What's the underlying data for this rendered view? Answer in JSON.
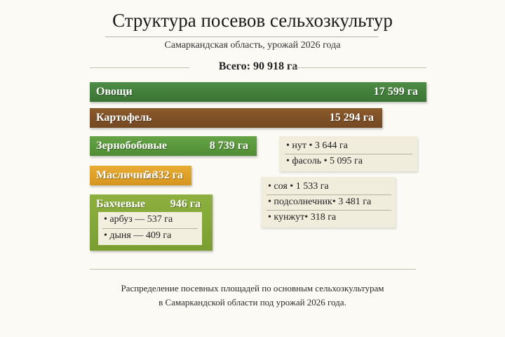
{
  "header": {
    "title": "Структура посевов сельхозкультур",
    "subtitle": "Самаркандская область, урожай 2026 года",
    "total": "Всего: 90 918 га"
  },
  "chart_data": {
    "type": "bar",
    "orientation": "horizontal",
    "unit": "га",
    "categories": [
      "Овощи",
      "Картофель",
      "Зернобобовые",
      "Масличные",
      "Бахчевые"
    ],
    "values": [
      17599,
      15294,
      8739,
      5332,
      946
    ],
    "value_labels": [
      "17 599 га",
      "15 294 га",
      "8 739 га",
      "5 332 га",
      "946 га"
    ],
    "colors": [
      "#3f7d3a",
      "#7f5128",
      "#5a9a3c",
      "#e0a22a",
      "#8db040"
    ],
    "breakdowns": {
      "Зернобобовые": [
        "• нут • 3 644 га",
        "• фасоль • 5 095 га"
      ],
      "Масличные": [
        "• соя • 1 533 га",
        "• подсолнечник• 3 481 га",
        "• кунжут• 318 га"
      ],
      "Бахчевые": [
        "• арбуз — 537 га",
        "• дыня — 409 га"
      ]
    }
  },
  "caption": {
    "line1": "Распределение посевных площадей по основным сельхозкультурам",
    "line2": "в Самаркандской области под урожай 2026 года."
  }
}
